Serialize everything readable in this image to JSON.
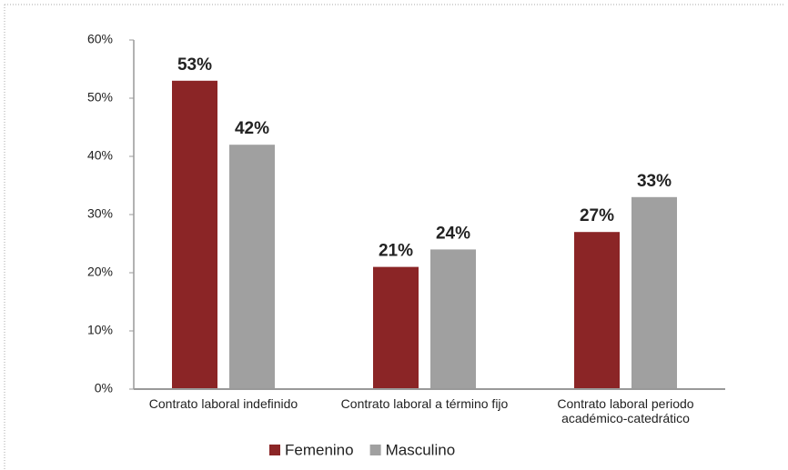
{
  "chart_data": {
    "type": "bar",
    "categories": [
      "Contrato laboral indefinido",
      "Contrato laboral a término fijo",
      "Contrato laboral periodo\nacadémico-catedrático"
    ],
    "series": [
      {
        "name": "Femenino",
        "color": "#8b2526",
        "values": [
          53,
          21,
          27
        ],
        "value_labels": [
          "53%",
          "21%",
          "27%"
        ]
      },
      {
        "name": "Masculino",
        "color": "#a0a0a0",
        "values": [
          42,
          24,
          33
        ],
        "value_labels": [
          "42%",
          "24%",
          "33%"
        ]
      }
    ],
    "ylim": [
      0,
      60
    ],
    "yticks": [
      {
        "value": 0,
        "label": "0%"
      },
      {
        "value": 10,
        "label": "10%"
      },
      {
        "value": 20,
        "label": "20%"
      },
      {
        "value": 30,
        "label": "30%"
      },
      {
        "value": 40,
        "label": "40%"
      },
      {
        "value": 50,
        "label": "50%"
      },
      {
        "value": 60,
        "label": "60%"
      }
    ],
    "legend": "bottom"
  }
}
